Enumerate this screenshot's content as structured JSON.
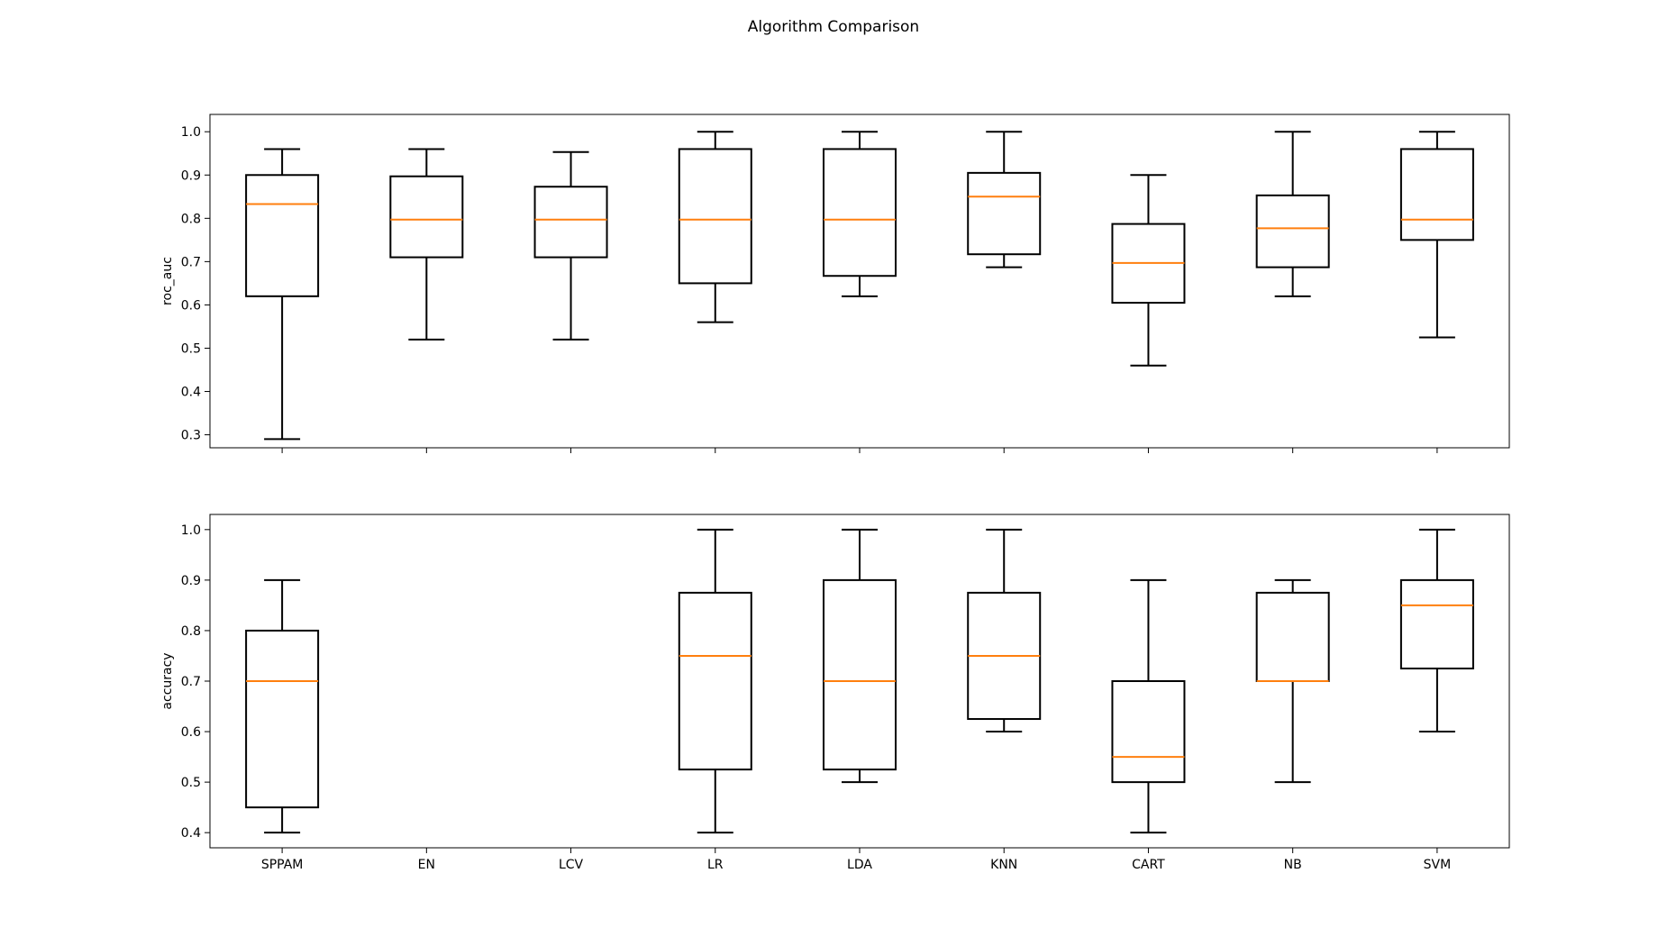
{
  "figure": {
    "title": "Algorithm Comparison"
  },
  "colors": {
    "box": "#000000",
    "median": "#ff7f0e",
    "background": "#ffffff"
  },
  "chart_data": [
    {
      "type": "box",
      "ylabel": "roc_auc",
      "xlabel": "",
      "ylim": [
        0.27,
        1.04
      ],
      "yticks": [
        "0.3",
        "0.4",
        "0.5",
        "0.6",
        "0.7",
        "0.8",
        "0.9",
        "1.0"
      ],
      "show_xtick_labels": false,
      "grid": false,
      "categories": [
        "SPPAM",
        "EN",
        "LCV",
        "LR",
        "LDA",
        "KNN",
        "CART",
        "NB",
        "SVM"
      ],
      "series": [
        {
          "category": "SPPAM",
          "whisker_low": 0.29,
          "q1": 0.62,
          "median": 0.833,
          "q3": 0.9,
          "whisker_high": 0.96
        },
        {
          "category": "EN",
          "whisker_low": 0.52,
          "q1": 0.71,
          "median": 0.797,
          "q3": 0.897,
          "whisker_high": 0.96
        },
        {
          "category": "LCV",
          "whisker_low": 0.52,
          "q1": 0.71,
          "median": 0.797,
          "q3": 0.873,
          "whisker_high": 0.953
        },
        {
          "category": "LR",
          "whisker_low": 0.56,
          "q1": 0.65,
          "median": 0.797,
          "q3": 0.96,
          "whisker_high": 1.0
        },
        {
          "category": "LDA",
          "whisker_low": 0.62,
          "q1": 0.667,
          "median": 0.797,
          "q3": 0.96,
          "whisker_high": 1.0
        },
        {
          "category": "KNN",
          "whisker_low": 0.687,
          "q1": 0.717,
          "median": 0.85,
          "q3": 0.905,
          "whisker_high": 1.0
        },
        {
          "category": "CART",
          "whisker_low": 0.46,
          "q1": 0.605,
          "median": 0.697,
          "q3": 0.787,
          "whisker_high": 0.9
        },
        {
          "category": "NB",
          "whisker_low": 0.62,
          "q1": 0.687,
          "median": 0.777,
          "q3": 0.853,
          "whisker_high": 1.0
        },
        {
          "category": "SVM",
          "whisker_low": 0.525,
          "q1": 0.75,
          "median": 0.797,
          "q3": 0.96,
          "whisker_high": 1.0
        }
      ]
    },
    {
      "type": "box",
      "ylabel": "accuracy",
      "xlabel": "",
      "ylim": [
        0.37,
        1.03
      ],
      "yticks": [
        "0.4",
        "0.5",
        "0.6",
        "0.7",
        "0.8",
        "0.9",
        "1.0"
      ],
      "show_xtick_labels": true,
      "grid": false,
      "categories": [
        "SPPAM",
        "EN",
        "LCV",
        "LR",
        "LDA",
        "KNN",
        "CART",
        "NB",
        "SVM"
      ],
      "series": [
        {
          "category": "SPPAM",
          "whisker_low": 0.4,
          "q1": 0.45,
          "median": 0.7,
          "q3": 0.8,
          "whisker_high": 0.9
        },
        {
          "category": "EN"
        },
        {
          "category": "LCV"
        },
        {
          "category": "LR",
          "whisker_low": 0.4,
          "q1": 0.525,
          "median": 0.75,
          "q3": 0.875,
          "whisker_high": 1.0
        },
        {
          "category": "LDA",
          "whisker_low": 0.5,
          "q1": 0.525,
          "median": 0.7,
          "q3": 0.9,
          "whisker_high": 1.0
        },
        {
          "category": "KNN",
          "whisker_low": 0.6,
          "q1": 0.625,
          "median": 0.75,
          "q3": 0.875,
          "whisker_high": 1.0
        },
        {
          "category": "CART",
          "whisker_low": 0.4,
          "q1": 0.5,
          "median": 0.55,
          "q3": 0.7,
          "whisker_high": 0.9
        },
        {
          "category": "NB",
          "whisker_low": 0.5,
          "q1": 0.7,
          "median": 0.7,
          "q3": 0.875,
          "whisker_high": 0.9
        },
        {
          "category": "SVM",
          "whisker_low": 0.6,
          "q1": 0.725,
          "median": 0.85,
          "q3": 0.9,
          "whisker_high": 1.0
        }
      ]
    }
  ]
}
